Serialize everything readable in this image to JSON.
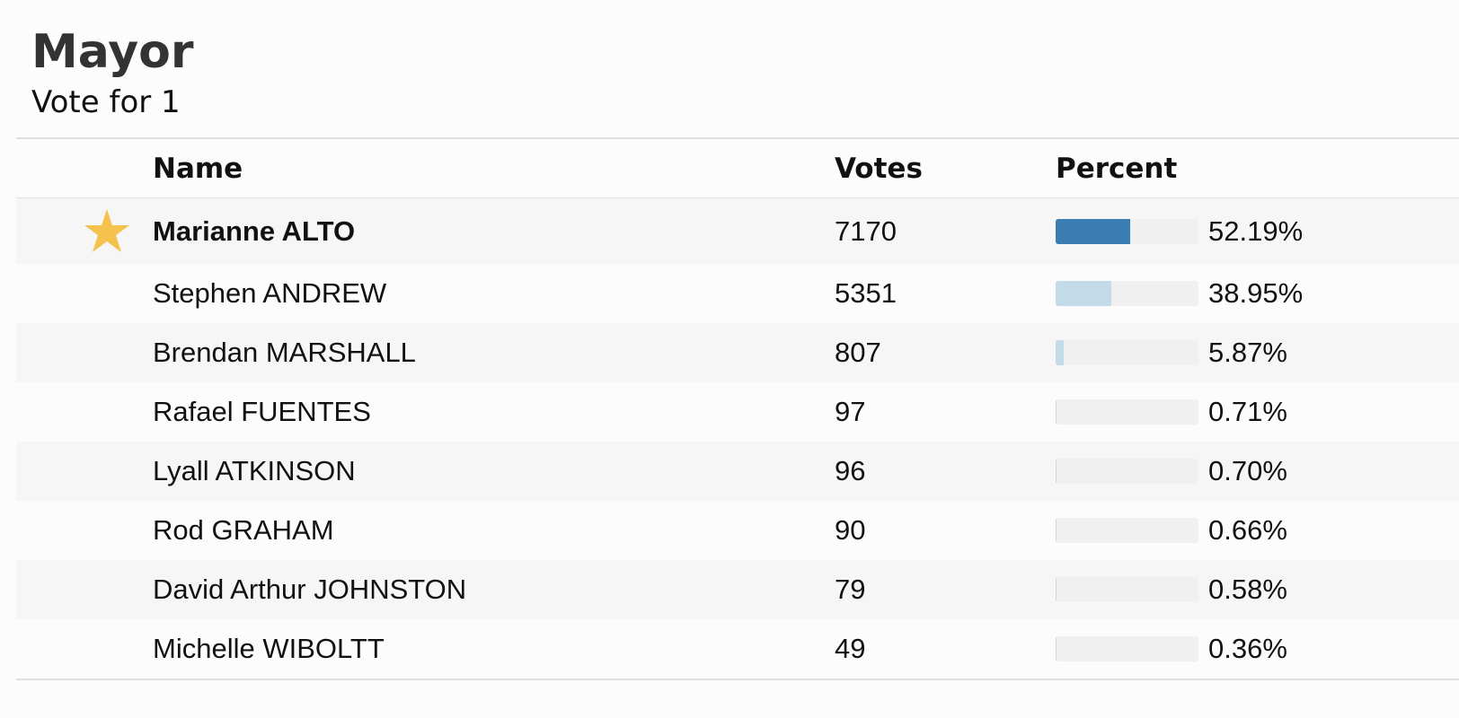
{
  "header": {
    "title": "Mayor",
    "subtitle": "Vote for 1"
  },
  "table": {
    "columns": [
      "Name",
      "Votes",
      "Percent"
    ],
    "bar_color": "#3a7db3",
    "other_bar_color": "#c3dbe8",
    "track_color": "#f0f0f0",
    "rows": [
      {
        "name": "Marianne ALTO",
        "votes": 7170,
        "percent": 52.19,
        "percent_label": "52.19%",
        "winner": true
      },
      {
        "name": "Stephen ANDREW",
        "votes": 5351,
        "percent": 38.95,
        "percent_label": "38.95%"
      },
      {
        "name": "Brendan MARSHALL",
        "votes": 807,
        "percent": 5.87,
        "percent_label": "5.87%"
      },
      {
        "name": "Rafael FUENTES",
        "votes": 97,
        "percent": 0.71,
        "percent_label": "0.71%"
      },
      {
        "name": "Lyall ATKINSON",
        "votes": 96,
        "percent": 0.7,
        "percent_label": "0.70%"
      },
      {
        "name": "Rod GRAHAM",
        "votes": 90,
        "percent": 0.66,
        "percent_label": "0.66%"
      },
      {
        "name": "David Arthur JOHNSTON",
        "votes": 79,
        "percent": 0.58,
        "percent_label": "0.58%"
      },
      {
        "name": "Michelle WIBOLTT",
        "votes": 49,
        "percent": 0.36,
        "percent_label": "0.36%"
      }
    ]
  }
}
